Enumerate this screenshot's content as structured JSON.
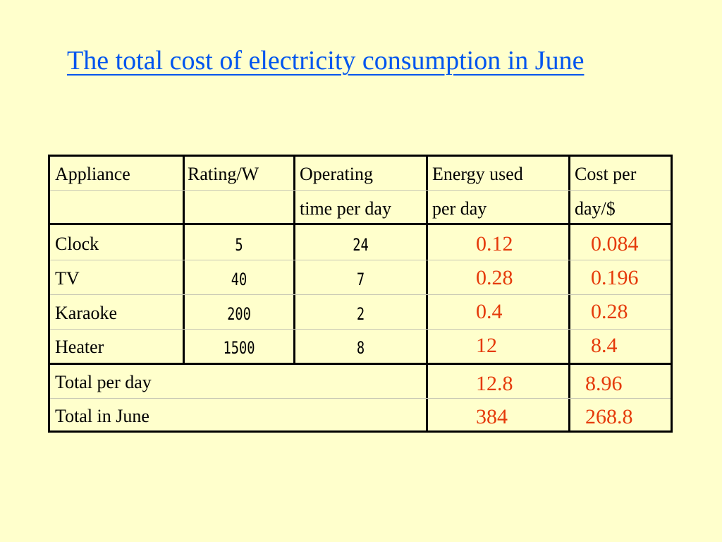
{
  "title": "The total cost of electricity consumption in June",
  "table": {
    "headers": [
      [
        "Appliance",
        ""
      ],
      [
        "Rating/W",
        ""
      ],
      [
        "Operating",
        "time per day"
      ],
      [
        "Energy used",
        "per day"
      ],
      [
        "Cost per",
        "day/$"
      ]
    ],
    "rows": [
      {
        "appliance": "Clock",
        "rating": "5",
        "time": "24",
        "energy": "0.12",
        "cost": "0.084"
      },
      {
        "appliance": "TV",
        "rating": "40",
        "time": "7",
        "energy": "0.28",
        "cost": "0.196"
      },
      {
        "appliance": "Karaoke",
        "rating": "200",
        "time": "2",
        "energy": "0.4",
        "cost": "0.28"
      },
      {
        "appliance": "Heater",
        "rating": "1500",
        "time": "8",
        "energy": "12",
        "cost": "8.4"
      }
    ],
    "totals": [
      {
        "label": "Total per day",
        "energy": "12.8",
        "cost": "8.96"
      },
      {
        "label": "Total in June",
        "energy": "384",
        "cost": "268.8"
      }
    ]
  },
  "colors": {
    "background": "#FFFFCC",
    "title": "#0055EE",
    "computed_values": "#E53A0A",
    "border": "#000000"
  }
}
